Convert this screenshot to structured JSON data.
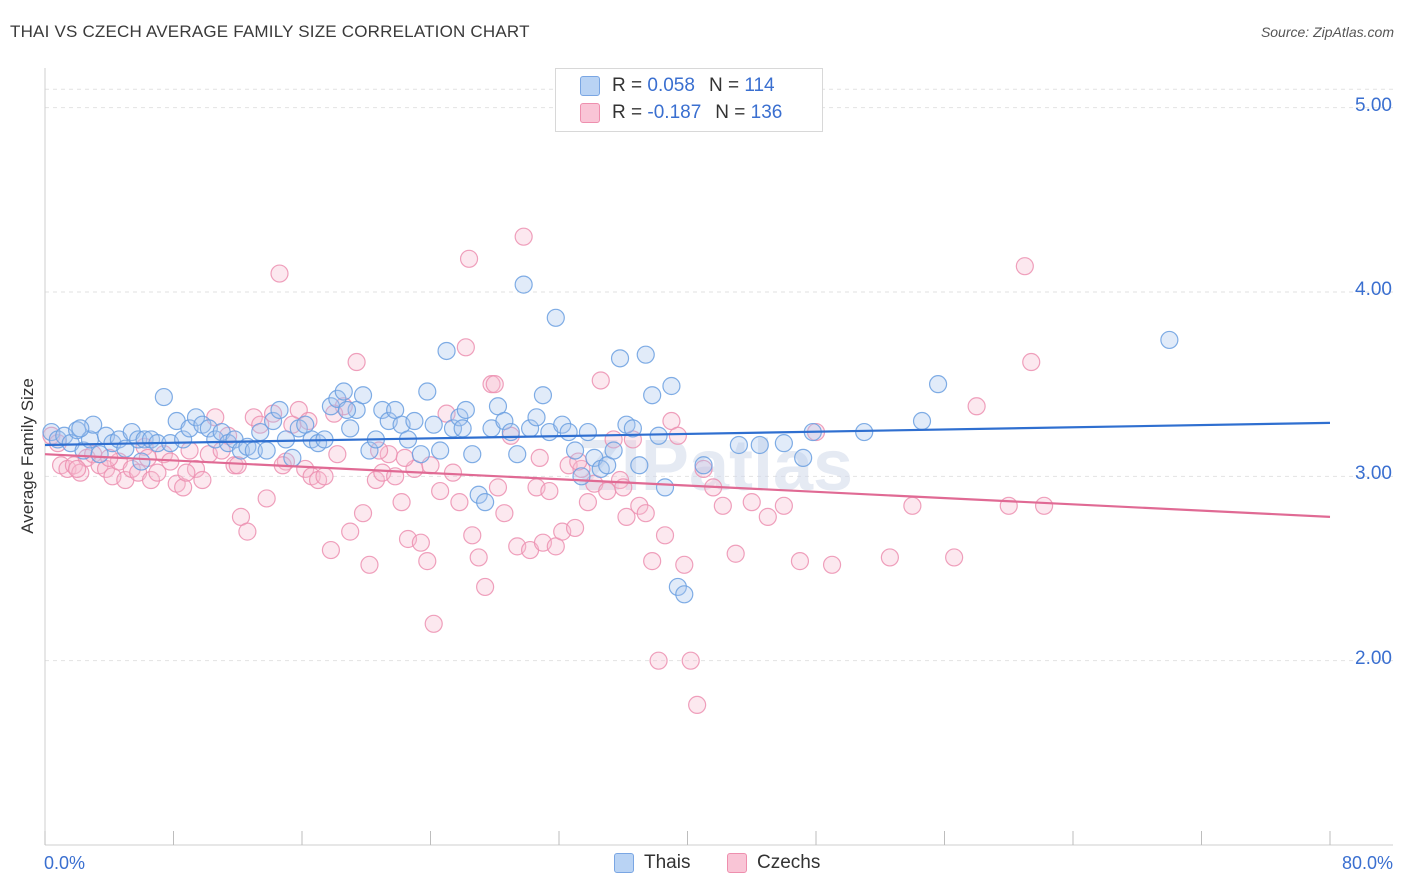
{
  "title": "THAI VS CZECH AVERAGE FAMILY SIZE CORRELATION CHART",
  "source": "Source: ZipAtlas.com",
  "watermark": "ZIPatlas",
  "legend": {
    "rows": [
      {
        "r_label": "R =",
        "r_value": "0.058",
        "n_label": "N =",
        "n_value": "114"
      },
      {
        "r_label": "R =",
        "r_value": "-0.187",
        "n_label": "N =",
        "n_value": "136"
      }
    ]
  },
  "bottom_legend": [
    "Thais",
    "Czechs"
  ],
  "colors": {
    "thais": "#6a9fe0",
    "czechs": "#f08fb0",
    "thais_line": "#2f6fd0",
    "czechs_line": "#e06a94",
    "axis_text": "#3a6fd0"
  },
  "chart_data": {
    "type": "scatter",
    "title": "THAI VS CZECH AVERAGE FAMILY SIZE CORRELATION CHART",
    "xlabel": "",
    "ylabel": "Average Family Size",
    "xlim": [
      0,
      80
    ],
    "ylim": [
      1.0,
      5.15
    ],
    "x_tick_labels": [
      "0.0%",
      "80.0%"
    ],
    "y_ticks": [
      2.0,
      3.0,
      4.0,
      5.0
    ],
    "y_tick_labels": [
      "2.00",
      "3.00",
      "4.00",
      "5.00"
    ],
    "grid": true,
    "legend_position": "top-center",
    "series": [
      {
        "name": "Thais",
        "r": 0.058,
        "n": 114,
        "trend": {
          "x": [
            0,
            80
          ],
          "y": [
            3.17,
            3.29
          ]
        },
        "points": [
          [
            0.4,
            3.24
          ],
          [
            0.8,
            3.2
          ],
          [
            1.2,
            3.22
          ],
          [
            1.6,
            3.18
          ],
          [
            2.0,
            3.25
          ],
          [
            2.4,
            3.14
          ],
          [
            2.8,
            3.2
          ],
          [
            3.0,
            3.28
          ],
          [
            3.4,
            3.12
          ],
          [
            3.8,
            3.22
          ],
          [
            4.2,
            3.18
          ],
          [
            4.6,
            3.2
          ],
          [
            5.0,
            3.15
          ],
          [
            5.4,
            3.24
          ],
          [
            5.8,
            3.2
          ],
          [
            6.2,
            3.2
          ],
          [
            6.6,
            3.2
          ],
          [
            7.0,
            3.18
          ],
          [
            7.4,
            3.43
          ],
          [
            7.8,
            3.18
          ],
          [
            8.2,
            3.3
          ],
          [
            8.6,
            3.2
          ],
          [
            9.0,
            3.26
          ],
          [
            9.4,
            3.32
          ],
          [
            9.8,
            3.28
          ],
          [
            10.2,
            3.26
          ],
          [
            10.6,
            3.2
          ],
          [
            11.0,
            3.24
          ],
          [
            11.4,
            3.18
          ],
          [
            11.8,
            3.2
          ],
          [
            12.2,
            3.14
          ],
          [
            12.6,
            3.16
          ],
          [
            13.0,
            3.14
          ],
          [
            13.4,
            3.24
          ],
          [
            13.8,
            3.14
          ],
          [
            14.2,
            3.3
          ],
          [
            14.6,
            3.36
          ],
          [
            15.0,
            3.2
          ],
          [
            15.4,
            3.1
          ],
          [
            15.8,
            3.26
          ],
          [
            16.2,
            3.28
          ],
          [
            16.6,
            3.2
          ],
          [
            17.0,
            3.18
          ],
          [
            17.4,
            3.2
          ],
          [
            17.8,
            3.38
          ],
          [
            18.2,
            3.42
          ],
          [
            18.6,
            3.46
          ],
          [
            19.0,
            3.26
          ],
          [
            19.4,
            3.36
          ],
          [
            19.8,
            3.44
          ],
          [
            20.2,
            3.14
          ],
          [
            20.6,
            3.2
          ],
          [
            21.0,
            3.36
          ],
          [
            21.4,
            3.3
          ],
          [
            21.8,
            3.36
          ],
          [
            22.2,
            3.28
          ],
          [
            22.6,
            3.2
          ],
          [
            23.0,
            3.3
          ],
          [
            23.4,
            3.12
          ],
          [
            23.8,
            3.46
          ],
          [
            24.2,
            3.28
          ],
          [
            24.6,
            3.14
          ],
          [
            25.0,
            3.68
          ],
          [
            25.4,
            3.26
          ],
          [
            25.8,
            3.32
          ],
          [
            26.2,
            3.36
          ],
          [
            26.6,
            3.12
          ],
          [
            27.0,
            2.9
          ],
          [
            27.4,
            2.86
          ],
          [
            27.8,
            3.26
          ],
          [
            28.2,
            3.38
          ],
          [
            28.6,
            3.3
          ],
          [
            29.0,
            3.24
          ],
          [
            29.4,
            3.12
          ],
          [
            29.8,
            4.04
          ],
          [
            30.2,
            3.26
          ],
          [
            30.6,
            3.32
          ],
          [
            31.0,
            3.44
          ],
          [
            31.4,
            3.24
          ],
          [
            31.8,
            3.86
          ],
          [
            32.2,
            3.28
          ],
          [
            32.6,
            3.24
          ],
          [
            33.0,
            3.14
          ],
          [
            33.4,
            3.0
          ],
          [
            33.8,
            3.24
          ],
          [
            34.2,
            3.1
          ],
          [
            34.6,
            3.04
          ],
          [
            35.0,
            3.06
          ],
          [
            35.4,
            3.14
          ],
          [
            35.8,
            3.64
          ],
          [
            36.2,
            3.28
          ],
          [
            36.6,
            3.26
          ],
          [
            37.0,
            3.06
          ],
          [
            37.4,
            3.66
          ],
          [
            37.8,
            3.44
          ],
          [
            38.2,
            3.22
          ],
          [
            38.6,
            2.94
          ],
          [
            39.0,
            3.49
          ],
          [
            39.4,
            2.4
          ],
          [
            39.8,
            2.36
          ],
          [
            43.2,
            3.17
          ],
          [
            44.5,
            3.17
          ],
          [
            46.0,
            3.18
          ],
          [
            47.2,
            3.1
          ],
          [
            47.8,
            3.24
          ],
          [
            51.0,
            3.24
          ],
          [
            54.6,
            3.3
          ],
          [
            55.6,
            3.5
          ],
          [
            70.0,
            3.74
          ],
          [
            41.0,
            3.06
          ],
          [
            2.2,
            3.26
          ],
          [
            6.0,
            3.08
          ],
          [
            18.8,
            3.36
          ],
          [
            26.0,
            3.26
          ]
        ]
      },
      {
        "name": "Czechs",
        "r": -0.187,
        "n": 136,
        "trend": {
          "x": [
            0,
            80
          ],
          "y": [
            3.12,
            2.78
          ]
        },
        "points": [
          [
            0.4,
            3.22
          ],
          [
            0.8,
            3.18
          ],
          [
            1.0,
            3.06
          ],
          [
            1.4,
            3.04
          ],
          [
            1.8,
            3.06
          ],
          [
            2.2,
            3.02
          ],
          [
            2.6,
            3.1
          ],
          [
            3.0,
            3.12
          ],
          [
            3.4,
            3.06
          ],
          [
            3.8,
            3.04
          ],
          [
            4.2,
            3.0
          ],
          [
            4.6,
            3.08
          ],
          [
            5.0,
            2.98
          ],
          [
            5.4,
            3.04
          ],
          [
            5.8,
            3.02
          ],
          [
            6.2,
            3.16
          ],
          [
            6.6,
            2.98
          ],
          [
            7.0,
            3.02
          ],
          [
            7.4,
            3.12
          ],
          [
            7.8,
            3.08
          ],
          [
            8.2,
            2.96
          ],
          [
            8.6,
            2.94
          ],
          [
            9.0,
            3.14
          ],
          [
            9.4,
            3.04
          ],
          [
            9.8,
            2.98
          ],
          [
            10.2,
            3.12
          ],
          [
            10.6,
            3.32
          ],
          [
            11.0,
            3.14
          ],
          [
            11.4,
            3.22
          ],
          [
            11.8,
            3.06
          ],
          [
            12.2,
            2.78
          ],
          [
            12.6,
            2.7
          ],
          [
            13.0,
            3.32
          ],
          [
            13.4,
            3.28
          ],
          [
            13.8,
            2.88
          ],
          [
            14.2,
            3.34
          ],
          [
            14.6,
            4.1
          ],
          [
            15.0,
            3.08
          ],
          [
            15.4,
            3.28
          ],
          [
            15.8,
            3.36
          ],
          [
            16.2,
            3.04
          ],
          [
            16.6,
            3.0
          ],
          [
            17.0,
            2.98
          ],
          [
            17.4,
            3.0
          ],
          [
            17.8,
            2.6
          ],
          [
            18.2,
            3.12
          ],
          [
            18.6,
            3.38
          ],
          [
            19.0,
            2.7
          ],
          [
            19.4,
            3.62
          ],
          [
            19.8,
            2.8
          ],
          [
            20.2,
            2.52
          ],
          [
            20.6,
            2.98
          ],
          [
            21.0,
            3.02
          ],
          [
            21.4,
            3.12
          ],
          [
            21.8,
            3.0
          ],
          [
            22.2,
            2.86
          ],
          [
            22.6,
            2.66
          ],
          [
            23.0,
            3.04
          ],
          [
            23.4,
            2.64
          ],
          [
            23.8,
            2.54
          ],
          [
            24.2,
            2.2
          ],
          [
            24.6,
            2.92
          ],
          [
            25.0,
            3.34
          ],
          [
            25.4,
            3.02
          ],
          [
            25.8,
            2.86
          ],
          [
            26.2,
            3.7
          ],
          [
            26.6,
            2.68
          ],
          [
            27.0,
            2.56
          ],
          [
            27.4,
            2.4
          ],
          [
            27.8,
            3.5
          ],
          [
            28.2,
            2.94
          ],
          [
            28.6,
            2.8
          ],
          [
            29.0,
            3.22
          ],
          [
            29.4,
            2.62
          ],
          [
            29.8,
            4.3
          ],
          [
            30.2,
            2.6
          ],
          [
            30.6,
            2.94
          ],
          [
            31.0,
            2.64
          ],
          [
            31.4,
            2.92
          ],
          [
            31.8,
            2.62
          ],
          [
            32.2,
            2.7
          ],
          [
            32.6,
            3.06
          ],
          [
            33.0,
            2.72
          ],
          [
            33.4,
            3.04
          ],
          [
            33.8,
            2.86
          ],
          [
            34.2,
            2.96
          ],
          [
            34.6,
            3.52
          ],
          [
            35.0,
            2.92
          ],
          [
            35.4,
            3.2
          ],
          [
            35.8,
            2.98
          ],
          [
            36.2,
            2.78
          ],
          [
            36.6,
            3.2
          ],
          [
            37.0,
            2.84
          ],
          [
            37.4,
            2.8
          ],
          [
            37.8,
            2.54
          ],
          [
            38.2,
            2.0
          ],
          [
            38.6,
            2.68
          ],
          [
            39.0,
            3.3
          ],
          [
            39.4,
            3.22
          ],
          [
            39.8,
            2.52
          ],
          [
            40.2,
            2.0
          ],
          [
            40.6,
            1.76
          ],
          [
            41.0,
            3.04
          ],
          [
            41.6,
            2.94
          ],
          [
            42.2,
            2.84
          ],
          [
            43.0,
            2.58
          ],
          [
            44.0,
            2.86
          ],
          [
            45.0,
            2.78
          ],
          [
            46.0,
            2.84
          ],
          [
            47.0,
            2.54
          ],
          [
            48.0,
            3.24
          ],
          [
            49.0,
            2.52
          ],
          [
            52.6,
            2.56
          ],
          [
            54.0,
            2.84
          ],
          [
            56.6,
            2.56
          ],
          [
            58.0,
            3.38
          ],
          [
            60.0,
            2.84
          ],
          [
            61.0,
            4.14
          ],
          [
            61.4,
            3.62
          ],
          [
            62.2,
            2.84
          ],
          [
            26.4,
            4.18
          ],
          [
            28.0,
            3.5
          ],
          [
            30.8,
            3.1
          ],
          [
            22.4,
            3.1
          ],
          [
            16.4,
            3.3
          ],
          [
            18.0,
            3.34
          ],
          [
            12.0,
            3.06
          ],
          [
            6.4,
            3.1
          ],
          [
            4.0,
            3.1
          ],
          [
            2.0,
            3.04
          ],
          [
            8.8,
            3.02
          ],
          [
            14.8,
            3.06
          ],
          [
            20.8,
            3.14
          ],
          [
            24.0,
            3.06
          ],
          [
            33.2,
            3.08
          ],
          [
            36.0,
            2.94
          ]
        ]
      }
    ]
  }
}
